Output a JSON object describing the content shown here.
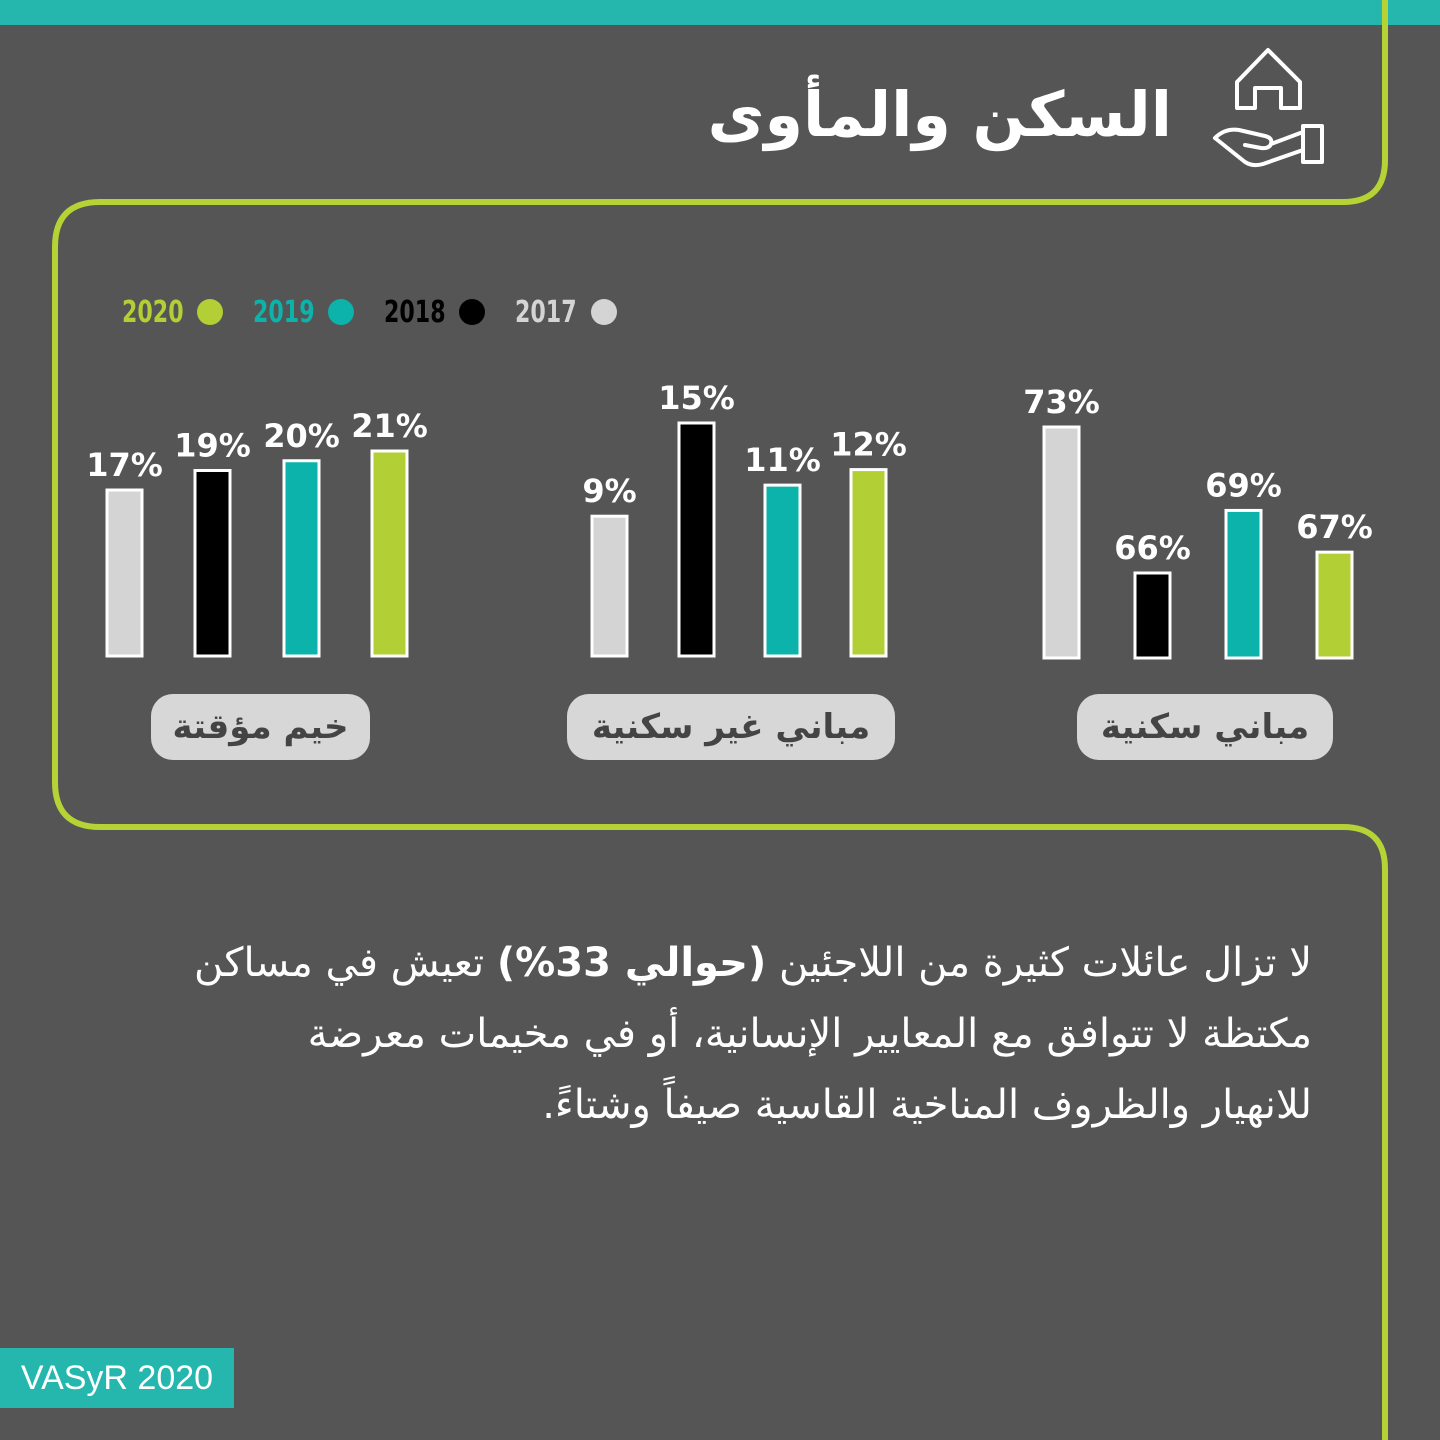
{
  "title": "السكن والمأوى",
  "header_icon": "house-in-hand-icon",
  "colors": {
    "accent_lime": "#b5d334",
    "accent_teal": "#25b7ad",
    "bar_2017": "#d4d4d4",
    "bar_2018": "#000000",
    "bar_2019": "#0bb3aa",
    "bar_2020": "#b2cf35",
    "background": "#555555"
  },
  "legend": [
    {
      "label": "2020",
      "color": "#b2cf35"
    },
    {
      "label": "2019",
      "color": "#0bb3aa"
    },
    {
      "label": "2018",
      "color": "#000000"
    },
    {
      "label": "2017",
      "color": "#d4d4d4"
    }
  ],
  "chart_data": {
    "type": "bar",
    "series_order": [
      "2017",
      "2018",
      "2019",
      "2020"
    ],
    "groups": [
      {
        "category": "مباني سكنية",
        "values": [
          73,
          66,
          69,
          67
        ],
        "labels": [
          "73%",
          "66%",
          "69%",
          "67%"
        ]
      },
      {
        "category": "مباني غير سكنية",
        "values": [
          9,
          15,
          11,
          12
        ],
        "labels": [
          "9%",
          "15%",
          "11%",
          "12%"
        ]
      },
      {
        "category": "خيم مؤقتة",
        "values": [
          17,
          19,
          20,
          21
        ],
        "labels": [
          "17%",
          "19%",
          "20%",
          "21%"
        ]
      }
    ],
    "series": [
      {
        "name": "2017",
        "color": "#d4d4d4"
      },
      {
        "name": "2018",
        "color": "#000000"
      },
      {
        "name": "2019",
        "color": "#0bb3aa"
      },
      {
        "name": "2020",
        "color": "#b2cf35"
      }
    ]
  },
  "description": {
    "line1_before": "لا تزال عائلات كثيرة من اللاجئين",
    "line1_bold": "(حوالي 33%)",
    "line1_after": "تعيش في مساكن",
    "line2": "مكتظة لا تتوافق مع المعايير الإنسانية، أو في مخيمات معرضة",
    "line3": "للانهيار والظروف المناخية القاسية صيفاً وشتاءً."
  },
  "source": "VASyR 2020"
}
